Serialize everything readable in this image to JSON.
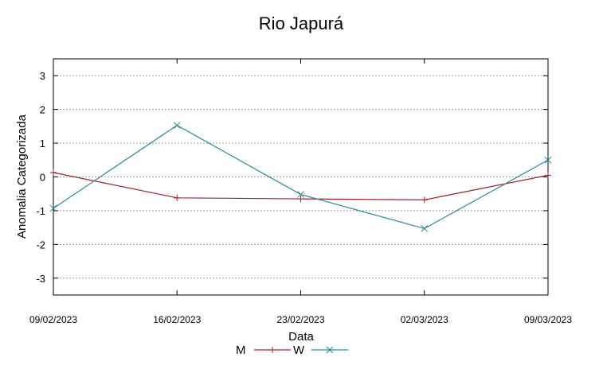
{
  "chart_data": {
    "type": "line",
    "title": "Rio Japurá",
    "xlabel": "Data",
    "ylabel": "Anomalia Categorizada",
    "categories": [
      "09/02/2023",
      "16/02/2023",
      "23/02/2023",
      "02/03/2023",
      "09/03/2023"
    ],
    "ylim": [
      -3.5,
      3.5
    ],
    "yticks": [
      3,
      2,
      1,
      0,
      -1,
      -2,
      -3
    ],
    "grid": true,
    "legend_position": "bottom",
    "series": [
      {
        "name": "M",
        "color": "#a0202a",
        "marker": "plus",
        "values": [
          0.13,
          -0.62,
          -0.65,
          -0.68,
          0.05
        ]
      },
      {
        "name": "W",
        "color": "#2a8a93",
        "marker": "cross",
        "values": [
          -0.93,
          1.53,
          -0.52,
          -1.53,
          0.5
        ]
      }
    ]
  }
}
